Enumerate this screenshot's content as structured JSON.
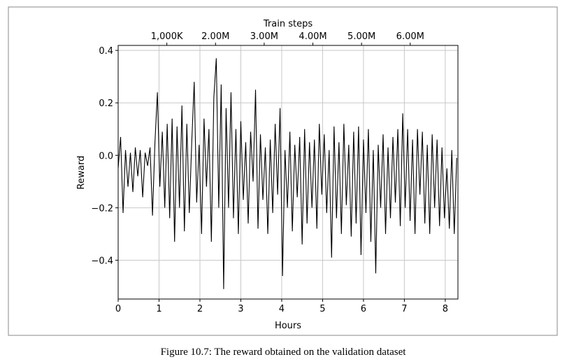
{
  "chart_data": {
    "type": "line",
    "xlabel": "Hours",
    "ylabel": "Reward",
    "x2label": "Train steps",
    "caption": "Figure 10.7: The reward obtained on the validation dataset",
    "color": "#000000",
    "grid": true,
    "xlim": [
      0,
      8.31
    ],
    "ylim": [
      -0.548,
      0.419
    ],
    "xticks": [
      0,
      1,
      2,
      3,
      4,
      5,
      6,
      7,
      8
    ],
    "yticks": [
      {
        "value": -0.4,
        "label": "−0.4"
      },
      {
        "value": -0.2,
        "label": "−0.2"
      },
      {
        "value": 0,
        "label": "0.0"
      },
      0.2,
      0.4
    ],
    "x2lim": [
      0,
      6980000
    ],
    "x2ticks": [
      {
        "value": 1000000,
        "label": "1,000K"
      },
      {
        "value": 2000000,
        "label": "2.00M"
      },
      {
        "value": 3000000,
        "label": "3.00M"
      },
      {
        "value": 4000000,
        "label": "4.00M"
      },
      {
        "value": 5000000,
        "label": "5.00M"
      },
      {
        "value": 6000000,
        "label": "6.00M"
      }
    ],
    "x": [
      0,
      0.06,
      0.12,
      0.18,
      0.24,
      0.3,
      0.36,
      0.42,
      0.48,
      0.54,
      0.6,
      0.66,
      0.72,
      0.78,
      0.84,
      0.9,
      0.96,
      1.02,
      1.08,
      1.14,
      1.2,
      1.26,
      1.32,
      1.38,
      1.44,
      1.5,
      1.56,
      1.62,
      1.68,
      1.74,
      1.8,
      1.86,
      1.92,
      1.98,
      2.04,
      2.1,
      2.16,
      2.22,
      2.28,
      2.34,
      2.4,
      2.46,
      2.52,
      2.58,
      2.64,
      2.7,
      2.76,
      2.82,
      2.88,
      2.94,
      3.0,
      3.06,
      3.12,
      3.18,
      3.24,
      3.3,
      3.36,
      3.42,
      3.48,
      3.54,
      3.6,
      3.66,
      3.72,
      3.78,
      3.84,
      3.9,
      3.96,
      4.02,
      4.08,
      4.14,
      4.2,
      4.26,
      4.32,
      4.38,
      4.44,
      4.5,
      4.56,
      4.62,
      4.68,
      4.74,
      4.8,
      4.86,
      4.92,
      4.98,
      5.04,
      5.1,
      5.16,
      5.22,
      5.28,
      5.34,
      5.4,
      5.46,
      5.52,
      5.58,
      5.64,
      5.7,
      5.76,
      5.82,
      5.88,
      5.94,
      6.0,
      6.06,
      6.12,
      6.18,
      6.24,
      6.3,
      6.36,
      6.42,
      6.48,
      6.54,
      6.6,
      6.66,
      6.72,
      6.78,
      6.84,
      6.9,
      6.96,
      7.02,
      7.08,
      7.14,
      7.2,
      7.26,
      7.32,
      7.38,
      7.44,
      7.5,
      7.56,
      7.62,
      7.68,
      7.74,
      7.8,
      7.86,
      7.92,
      7.98,
      8.04,
      8.1,
      8.16,
      8.22,
      8.28
    ],
    "values": [
      -0.05,
      0.07,
      -0.22,
      0.02,
      -0.12,
      0.01,
      -0.14,
      0.03,
      -0.08,
      0.02,
      -0.16,
      0.01,
      -0.04,
      0.03,
      -0.23,
      0.05,
      0.24,
      -0.12,
      0.09,
      -0.2,
      0.12,
      -0.24,
      0.14,
      -0.33,
      0.11,
      -0.2,
      0.19,
      -0.29,
      0.12,
      -0.22,
      0.05,
      0.28,
      -0.18,
      0.04,
      -0.3,
      0.14,
      -0.12,
      0.1,
      -0.33,
      0.22,
      0.37,
      -0.2,
      0.27,
      -0.51,
      0.18,
      -0.2,
      0.24,
      -0.24,
      0.1,
      -0.3,
      0.13,
      -0.17,
      0.05,
      -0.26,
      0.09,
      -0.1,
      0.25,
      -0.28,
      0.08,
      -0.17,
      0.03,
      -0.3,
      0.06,
      -0.22,
      0.12,
      -0.15,
      0.18,
      -0.46,
      0.02,
      -0.2,
      0.09,
      -0.29,
      0.04,
      -0.16,
      0.07,
      -0.34,
      0.1,
      -0.26,
      0.05,
      -0.2,
      0.06,
      -0.28,
      0.12,
      -0.15,
      0.08,
      -0.22,
      0.02,
      -0.39,
      0.11,
      -0.24,
      0.05,
      -0.3,
      0.12,
      -0.19,
      0.04,
      -0.31,
      0.09,
      -0.26,
      0.11,
      -0.38,
      0.06,
      -0.22,
      0.1,
      -0.33,
      0.02,
      -0.45,
      0.04,
      -0.2,
      0.08,
      -0.3,
      0.03,
      -0.24,
      0.07,
      -0.18,
      0.1,
      -0.27,
      0.16,
      -0.2,
      0.1,
      -0.25,
      0.06,
      -0.3,
      0.1,
      -0.15,
      0.09,
      -0.26,
      0.04,
      -0.3,
      0.08,
      -0.2,
      0.06,
      -0.27,
      0.03,
      -0.24,
      -0.05,
      -0.28,
      0.02,
      -0.3,
      -0.01
    ]
  }
}
